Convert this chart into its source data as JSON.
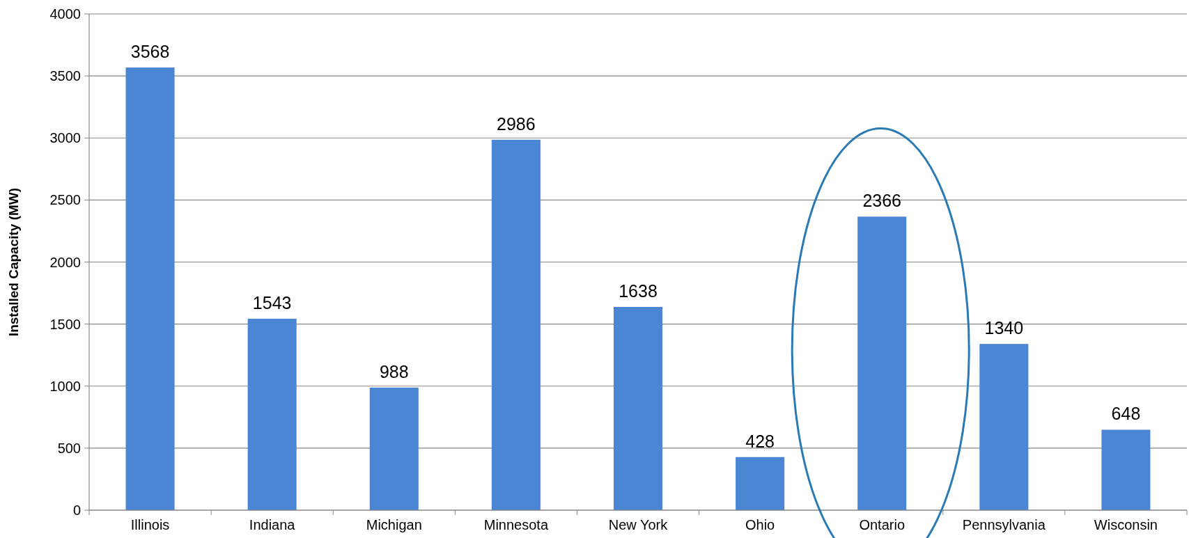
{
  "chart_data": {
    "type": "bar",
    "ylabel": "Installed Capacity (MW)",
    "categories": [
      "Illinois",
      "Indiana",
      "Michigan",
      "Minnesota",
      "New York",
      "Ohio",
      "Ontario",
      "Pennsylvania",
      "Wisconsin"
    ],
    "values": [
      3568,
      1543,
      988,
      2986,
      1638,
      428,
      2366,
      1340,
      648
    ],
    "color": "#4a86d4",
    "ylim": [
      0,
      4000
    ],
    "yticks": [
      0,
      500,
      1000,
      1500,
      2000,
      2500,
      3000,
      3500,
      4000
    ],
    "grid": "y",
    "data_labels": true
  }
}
